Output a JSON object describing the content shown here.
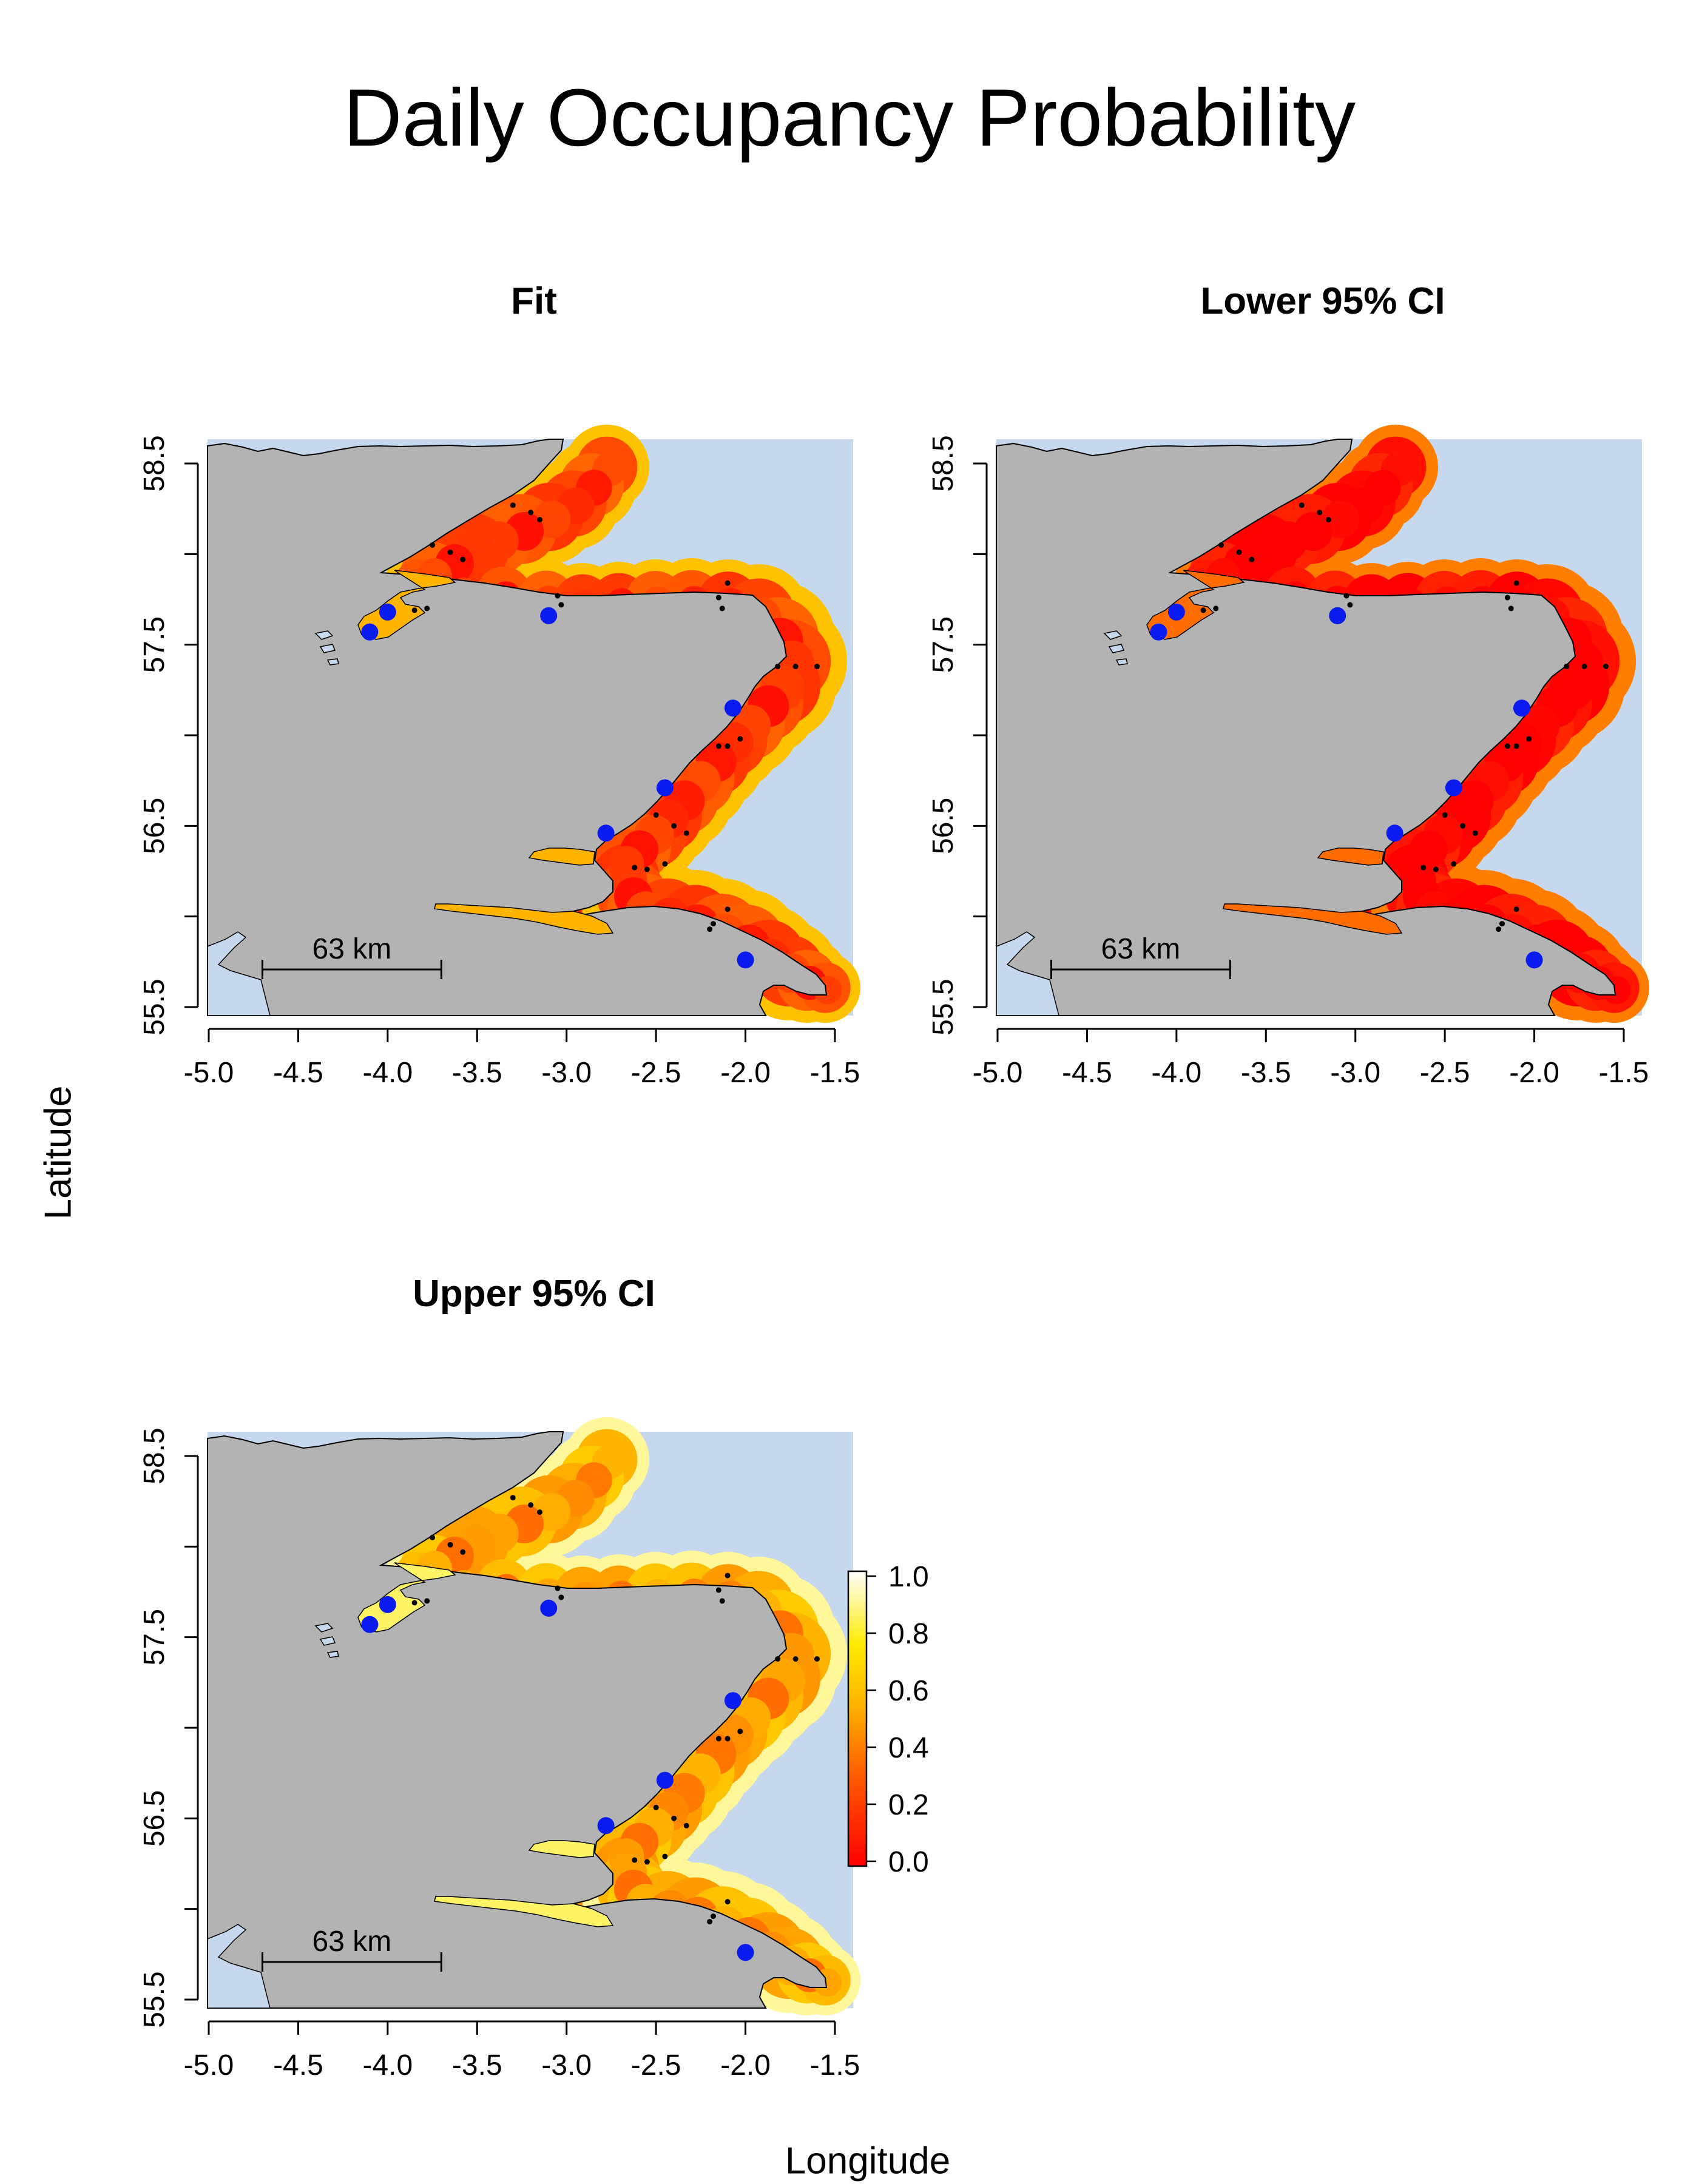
{
  "title": "Daily Occupancy Probability",
  "xlabel": "Longitude",
  "ylabel": "Latitude",
  "colors": {
    "land": "#b3b3b3",
    "sea": "#c6d8ee",
    "station_large": "#0a1bef",
    "station_small": "#000000"
  },
  "axes": {
    "x_ticks": [
      "-5.0",
      "-4.5",
      "-4.0",
      "-3.5",
      "-3.0",
      "-2.5",
      "-2.0",
      "-1.5"
    ],
    "y_ticks": [
      "55.5",
      "56.5",
      "57.5",
      "58.5"
    ],
    "xlim": [
      -5.0,
      -1.5
    ],
    "ylim": [
      55.5,
      58.5
    ]
  },
  "scale_bar": {
    "label": "63 km",
    "from_lon": -4.7,
    "to_lon": -3.7
  },
  "legend": {
    "ticks": [
      "1.0",
      "0.8",
      "0.6",
      "0.4",
      "0.2",
      "0.0"
    ],
    "range": [
      0,
      1
    ]
  },
  "chart_data": {
    "type": "heatmap",
    "title": "Daily Occupancy Probability",
    "xlabel": "Longitude",
    "ylabel": "Latitude",
    "xlim": [
      -5.0,
      -1.5
    ],
    "ylim": [
      55.5,
      58.5
    ],
    "panels": [
      {
        "title": "Fit",
        "level": 0.25
      },
      {
        "title": "Lower 95% CI",
        "level": 0.05
      },
      {
        "title": "Upper 95% CI",
        "level": 0.55
      }
    ],
    "stations_large": [
      {
        "lon": -4.0,
        "lat": 57.68
      },
      {
        "lon": -4.1,
        "lat": 57.57
      },
      {
        "lon": -3.1,
        "lat": 57.66
      },
      {
        "lon": -2.07,
        "lat": 57.15
      },
      {
        "lon": -2.45,
        "lat": 56.71
      },
      {
        "lon": -2.78,
        "lat": 56.46
      },
      {
        "lon": -2.0,
        "lat": 55.76
      }
    ],
    "stations_small": [
      {
        "lon": -3.3,
        "lat": 58.27
      },
      {
        "lon": -3.2,
        "lat": 58.23
      },
      {
        "lon": -3.15,
        "lat": 58.19
      },
      {
        "lon": -3.75,
        "lat": 58.05
      },
      {
        "lon": -3.65,
        "lat": 58.01
      },
      {
        "lon": -3.58,
        "lat": 57.97
      },
      {
        "lon": -3.05,
        "lat": 57.77
      },
      {
        "lon": -3.03,
        "lat": 57.72
      },
      {
        "lon": -3.85,
        "lat": 57.69
      },
      {
        "lon": -3.78,
        "lat": 57.7
      },
      {
        "lon": -2.1,
        "lat": 57.84
      },
      {
        "lon": -2.15,
        "lat": 57.76
      },
      {
        "lon": -2.13,
        "lat": 57.7
      },
      {
        "lon": -1.82,
        "lat": 57.38
      },
      {
        "lon": -1.72,
        "lat": 57.38
      },
      {
        "lon": -1.6,
        "lat": 57.38
      },
      {
        "lon": -2.15,
        "lat": 56.94
      },
      {
        "lon": -2.1,
        "lat": 56.94
      },
      {
        "lon": -2.03,
        "lat": 56.98
      },
      {
        "lon": -2.5,
        "lat": 56.56
      },
      {
        "lon": -2.4,
        "lat": 56.5
      },
      {
        "lon": -2.33,
        "lat": 56.46
      },
      {
        "lon": -2.62,
        "lat": 56.27
      },
      {
        "lon": -2.55,
        "lat": 56.26
      },
      {
        "lon": -2.45,
        "lat": 56.29
      },
      {
        "lon": -2.1,
        "lat": 56.04
      },
      {
        "lon": -2.18,
        "lat": 55.96
      },
      {
        "lon": -2.2,
        "lat": 55.93
      }
    ]
  }
}
